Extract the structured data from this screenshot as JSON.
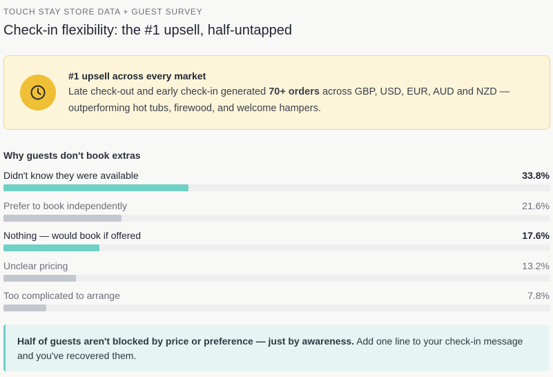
{
  "header": {
    "eyebrow": "TOUCH STAY STORE DATA + GUEST SURVEY",
    "title": "Check-in flexibility: the #1 upsell, half-untapped"
  },
  "callout": {
    "title": "#1 upsell across every market",
    "body_before": "Late check-out and early check-in generated ",
    "body_bold": "70+ orders",
    "body_after": " across GBP, USD, EUR, AUD and NZD — outperforming hot tubs, firewood, and welcome hampers."
  },
  "survey": {
    "title": "Why guests don't book extras",
    "xlim": [
      0,
      100
    ],
    "highlight_color": "#6fd0c5",
    "muted_color": "#c3c7cf",
    "items": [
      {
        "label": "Didn't know they were available",
        "value": 33.8,
        "value_label": "33.8%",
        "highlight": true
      },
      {
        "label": "Prefer to book independently",
        "value": 21.6,
        "value_label": "21.6%",
        "highlight": false
      },
      {
        "label": "Nothing — would book if offered",
        "value": 17.6,
        "value_label": "17.6%",
        "highlight": true
      },
      {
        "label": "Unclear pricing",
        "value": 13.2,
        "value_label": "13.2%",
        "highlight": false
      },
      {
        "label": "Too complicated to arrange",
        "value": 7.8,
        "value_label": "7.8%",
        "highlight": false
      }
    ]
  },
  "note": {
    "bold": "Half of guests aren't blocked by price or preference — just by awareness.",
    "rest": " Add one line to your check-in message and you've recovered them."
  }
}
